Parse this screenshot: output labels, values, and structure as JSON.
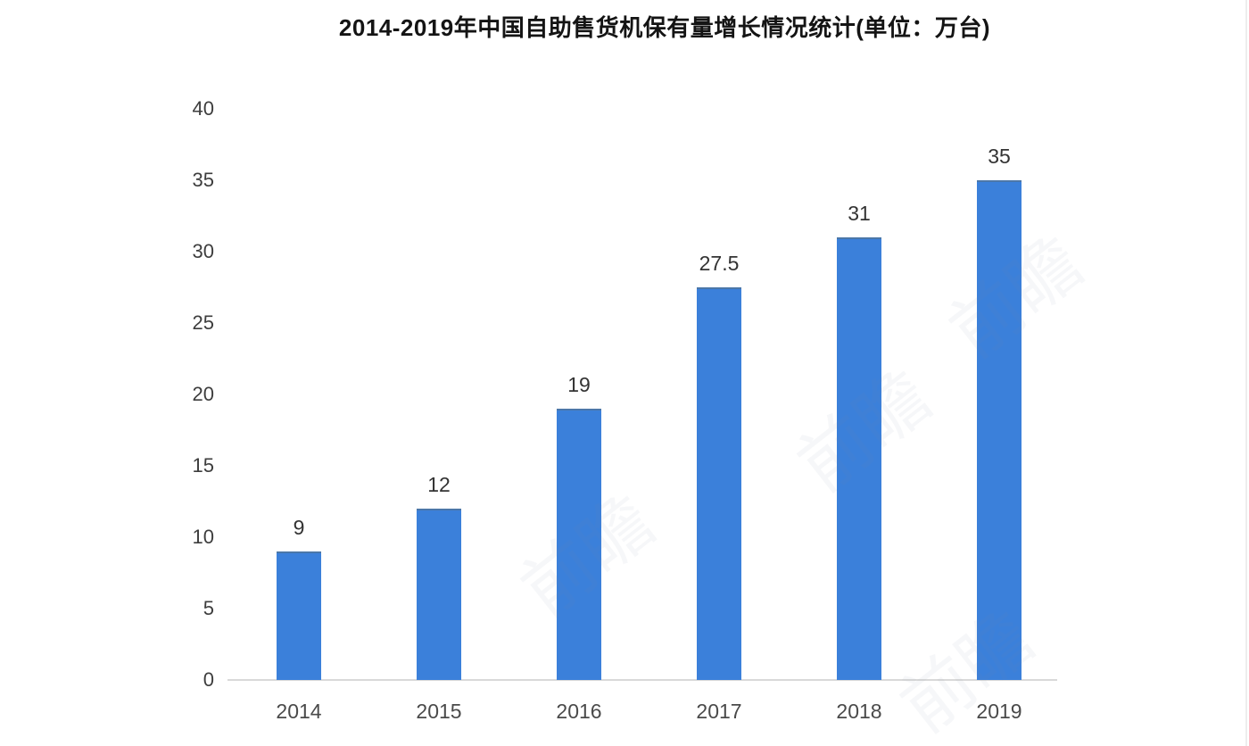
{
  "chart_data": {
    "type": "bar",
    "title": "2014-2019年中国自助售货机保有量增长情况统计(单位：万台)",
    "categories": [
      "2014",
      "2015",
      "2016",
      "2017",
      "2018",
      "2019"
    ],
    "values": [
      9,
      12,
      19,
      27.5,
      31,
      35
    ],
    "value_labels": [
      "9",
      "12",
      "19",
      "27.5",
      "31",
      "35"
    ],
    "yticks": [
      0,
      5,
      10,
      15,
      20,
      25,
      30,
      35,
      40
    ],
    "ylim": [
      0,
      40
    ],
    "xlabel": "",
    "ylabel": "",
    "grid": false,
    "legend_position": "none",
    "bar_color": "#3b80da",
    "bar_top_edge_color": "#4b77a9",
    "axis_line_color": "#d9d9d9",
    "title_color": "#141414",
    "tick_label_color": "#3d3d3d",
    "value_label_color": "#333333"
  },
  "watermark": {
    "text": "前瞻"
  }
}
